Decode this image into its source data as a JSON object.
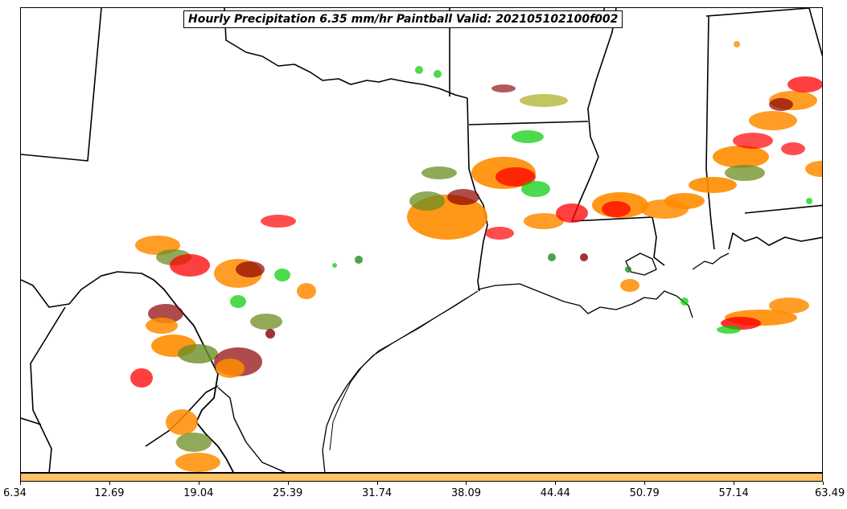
{
  "title": "Hourly Precipitation 6.35 mm/hr Paintball Valid: 202105102100f002",
  "colorbar": {
    "color": "#FFC266",
    "ticks": [
      "6.34",
      "12.69",
      "19.04",
      "25.39",
      "31.74",
      "38.09",
      "44.44",
      "50.79",
      "57.14",
      "63.49"
    ]
  },
  "paint_colors": {
    "red": "#FF0000",
    "orange": "#FF8C00",
    "dark_red": "#8B0000",
    "olive": "#6B8E23",
    "dark_green": "#228B22",
    "lime_green": "#00CC00",
    "khaki": "#B5B53C"
  }
}
